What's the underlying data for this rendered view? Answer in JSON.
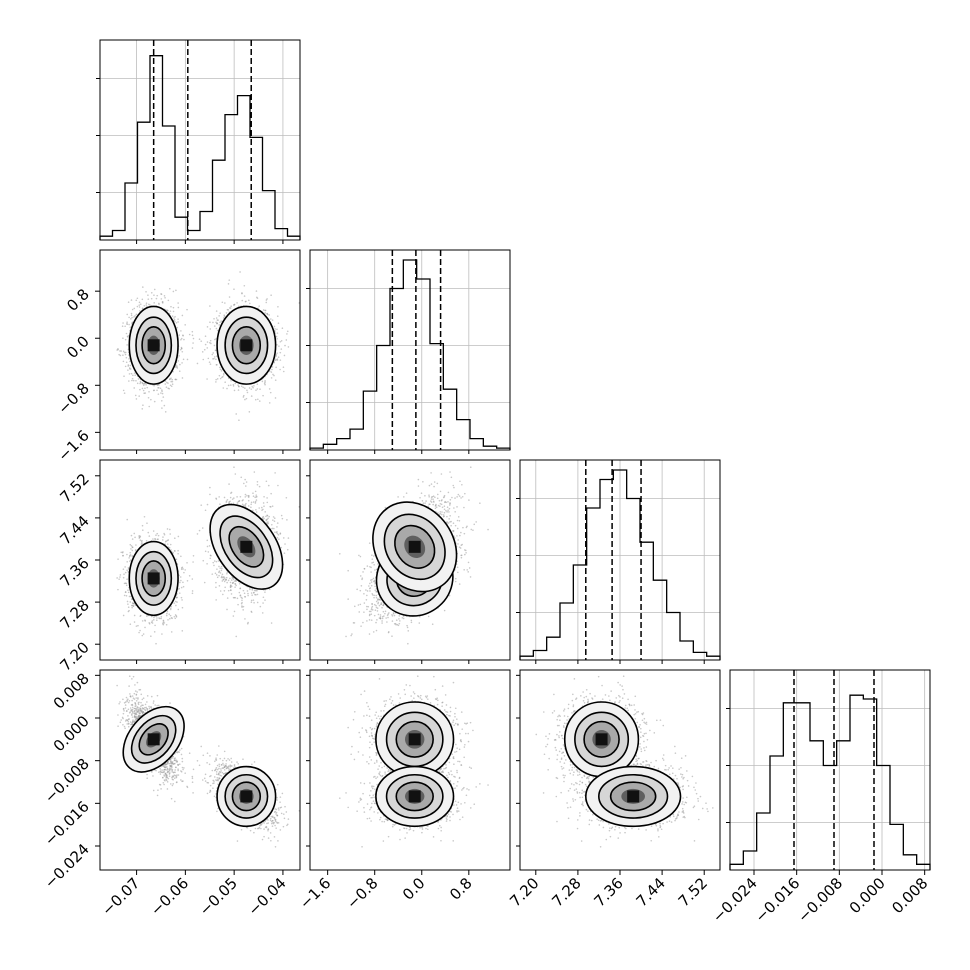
{
  "chart_data": {
    "type": "corner",
    "title": "",
    "parameters": [
      {
        "label": "",
        "range": [
          -0.0775,
          -0.0365
        ],
        "ticks": [
          -0.07,
          -0.06,
          -0.05,
          -0.04
        ],
        "tick_labels": [
          "−0.07",
          "−0.06",
          "−0.05",
          "−0.04"
        ],
        "quantiles": [
          -0.0665,
          -0.0595,
          -0.0465
        ]
      },
      {
        "label": "",
        "range": [
          -1.9,
          1.5
        ],
        "ticks": [
          -1.6,
          -0.8,
          0.0,
          0.8
        ],
        "tick_labels": [
          "−1.6",
          "−0.8",
          "0.0",
          "0.8"
        ],
        "quantiles": [
          -0.5,
          -0.1,
          0.32
        ]
      },
      {
        "label": "",
        "range": [
          7.17,
          7.55
        ],
        "ticks": [
          7.2,
          7.28,
          7.36,
          7.44,
          7.52
        ],
        "tick_labels": [
          "7.20",
          "7.28",
          "7.36",
          "7.44",
          "7.52"
        ],
        "quantiles": [
          7.295,
          7.345,
          7.4
        ]
      },
      {
        "label": "",
        "range": [
          -0.0285,
          0.009
        ],
        "ticks": [
          -0.024,
          -0.016,
          -0.008,
          0.0,
          0.008
        ],
        "tick_labels": [
          "−0.024",
          "−0.016",
          "−0.008",
          "0.000",
          "0.008"
        ],
        "quantiles": [
          -0.0165,
          -0.009,
          -0.0015
        ]
      }
    ],
    "histograms": [
      [
        0.02,
        0.05,
        0.3,
        0.62,
        0.97,
        0.6,
        0.12,
        0.05,
        0.15,
        0.42,
        0.66,
        0.76,
        0.54,
        0.26,
        0.06,
        0.02
      ],
      [
        0.01,
        0.03,
        0.06,
        0.11,
        0.31,
        0.55,
        0.85,
        1.0,
        0.9,
        0.56,
        0.32,
        0.16,
        0.06,
        0.02,
        0.01
      ],
      [
        0.02,
        0.05,
        0.12,
        0.3,
        0.5,
        0.8,
        0.95,
        1.0,
        0.85,
        0.62,
        0.42,
        0.25,
        0.1,
        0.04,
        0.02
      ],
      [
        0.03,
        0.1,
        0.3,
        0.6,
        0.88,
        0.88,
        0.68,
        0.55,
        0.68,
        0.92,
        0.9,
        0.55,
        0.24,
        0.08,
        0.03
      ]
    ],
    "modes": [
      {
        "center": [
          -0.0665,
          -0.12,
          7.325,
          -0.004
        ],
        "sigma": [
          0.0025,
          0.33,
          0.035,
          0.0035
        ]
      },
      {
        "center": [
          -0.0475,
          -0.12,
          7.385,
          -0.0147
        ],
        "sigma": [
          0.003,
          0.33,
          0.045,
          0.0028
        ]
      }
    ],
    "grid": true,
    "legend": "none"
  }
}
